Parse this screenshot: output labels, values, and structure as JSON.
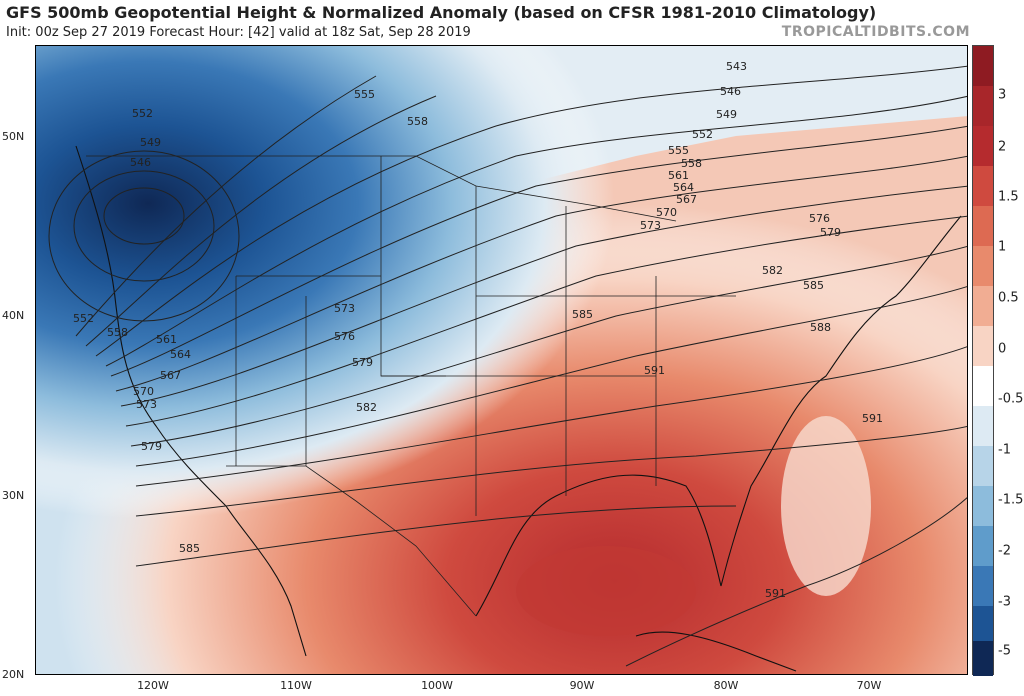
{
  "header": {
    "title": "GFS 500mb Geopotential Height & Normalized Anomaly (based on CFSR 1981-2010 Climatology)",
    "subtitle": "Init: 00z Sep 27 2019   Forecast Hour: [42]   valid at 18z Sat, Sep 28 2019",
    "brand": "TROPICALTIDBITS.COM"
  },
  "axes": {
    "lat_labels": [
      "50N",
      "40N",
      "30N",
      "20N"
    ],
    "lon_labels": [
      "120W",
      "110W",
      "100W",
      "90W",
      "80W",
      "70W"
    ]
  },
  "colorbar": {
    "labels": [
      "3",
      "2",
      "1.5",
      "1",
      "0.5",
      "0",
      "-0.5",
      "-1",
      "-1.5",
      "-2",
      "-3",
      "-5"
    ],
    "colors": [
      "#8e1b22",
      "#b52b2e",
      "#cf4a3f",
      "#dd6a52",
      "#e88a6c",
      "#f1ad93",
      "#f8d4c4",
      "#ffffff",
      "#ddeaf3",
      "#b7d4e8",
      "#8dbcdc",
      "#5f9ccb",
      "#3a78b6",
      "#1d5494",
      "#153a73",
      "#0f2855"
    ]
  },
  "contour_labels": [
    "543",
    "546",
    "549",
    "552",
    "555",
    "558",
    "561",
    "564",
    "567",
    "570",
    "573",
    "576",
    "579",
    "582",
    "585",
    "588",
    "591",
    "552",
    "549",
    "546",
    "555",
    "558",
    "552",
    "558",
    "561",
    "564",
    "567",
    "570",
    "573",
    "579",
    "573",
    "576",
    "579",
    "582",
    "585",
    "585",
    "591",
    "591",
    "591"
  ]
}
